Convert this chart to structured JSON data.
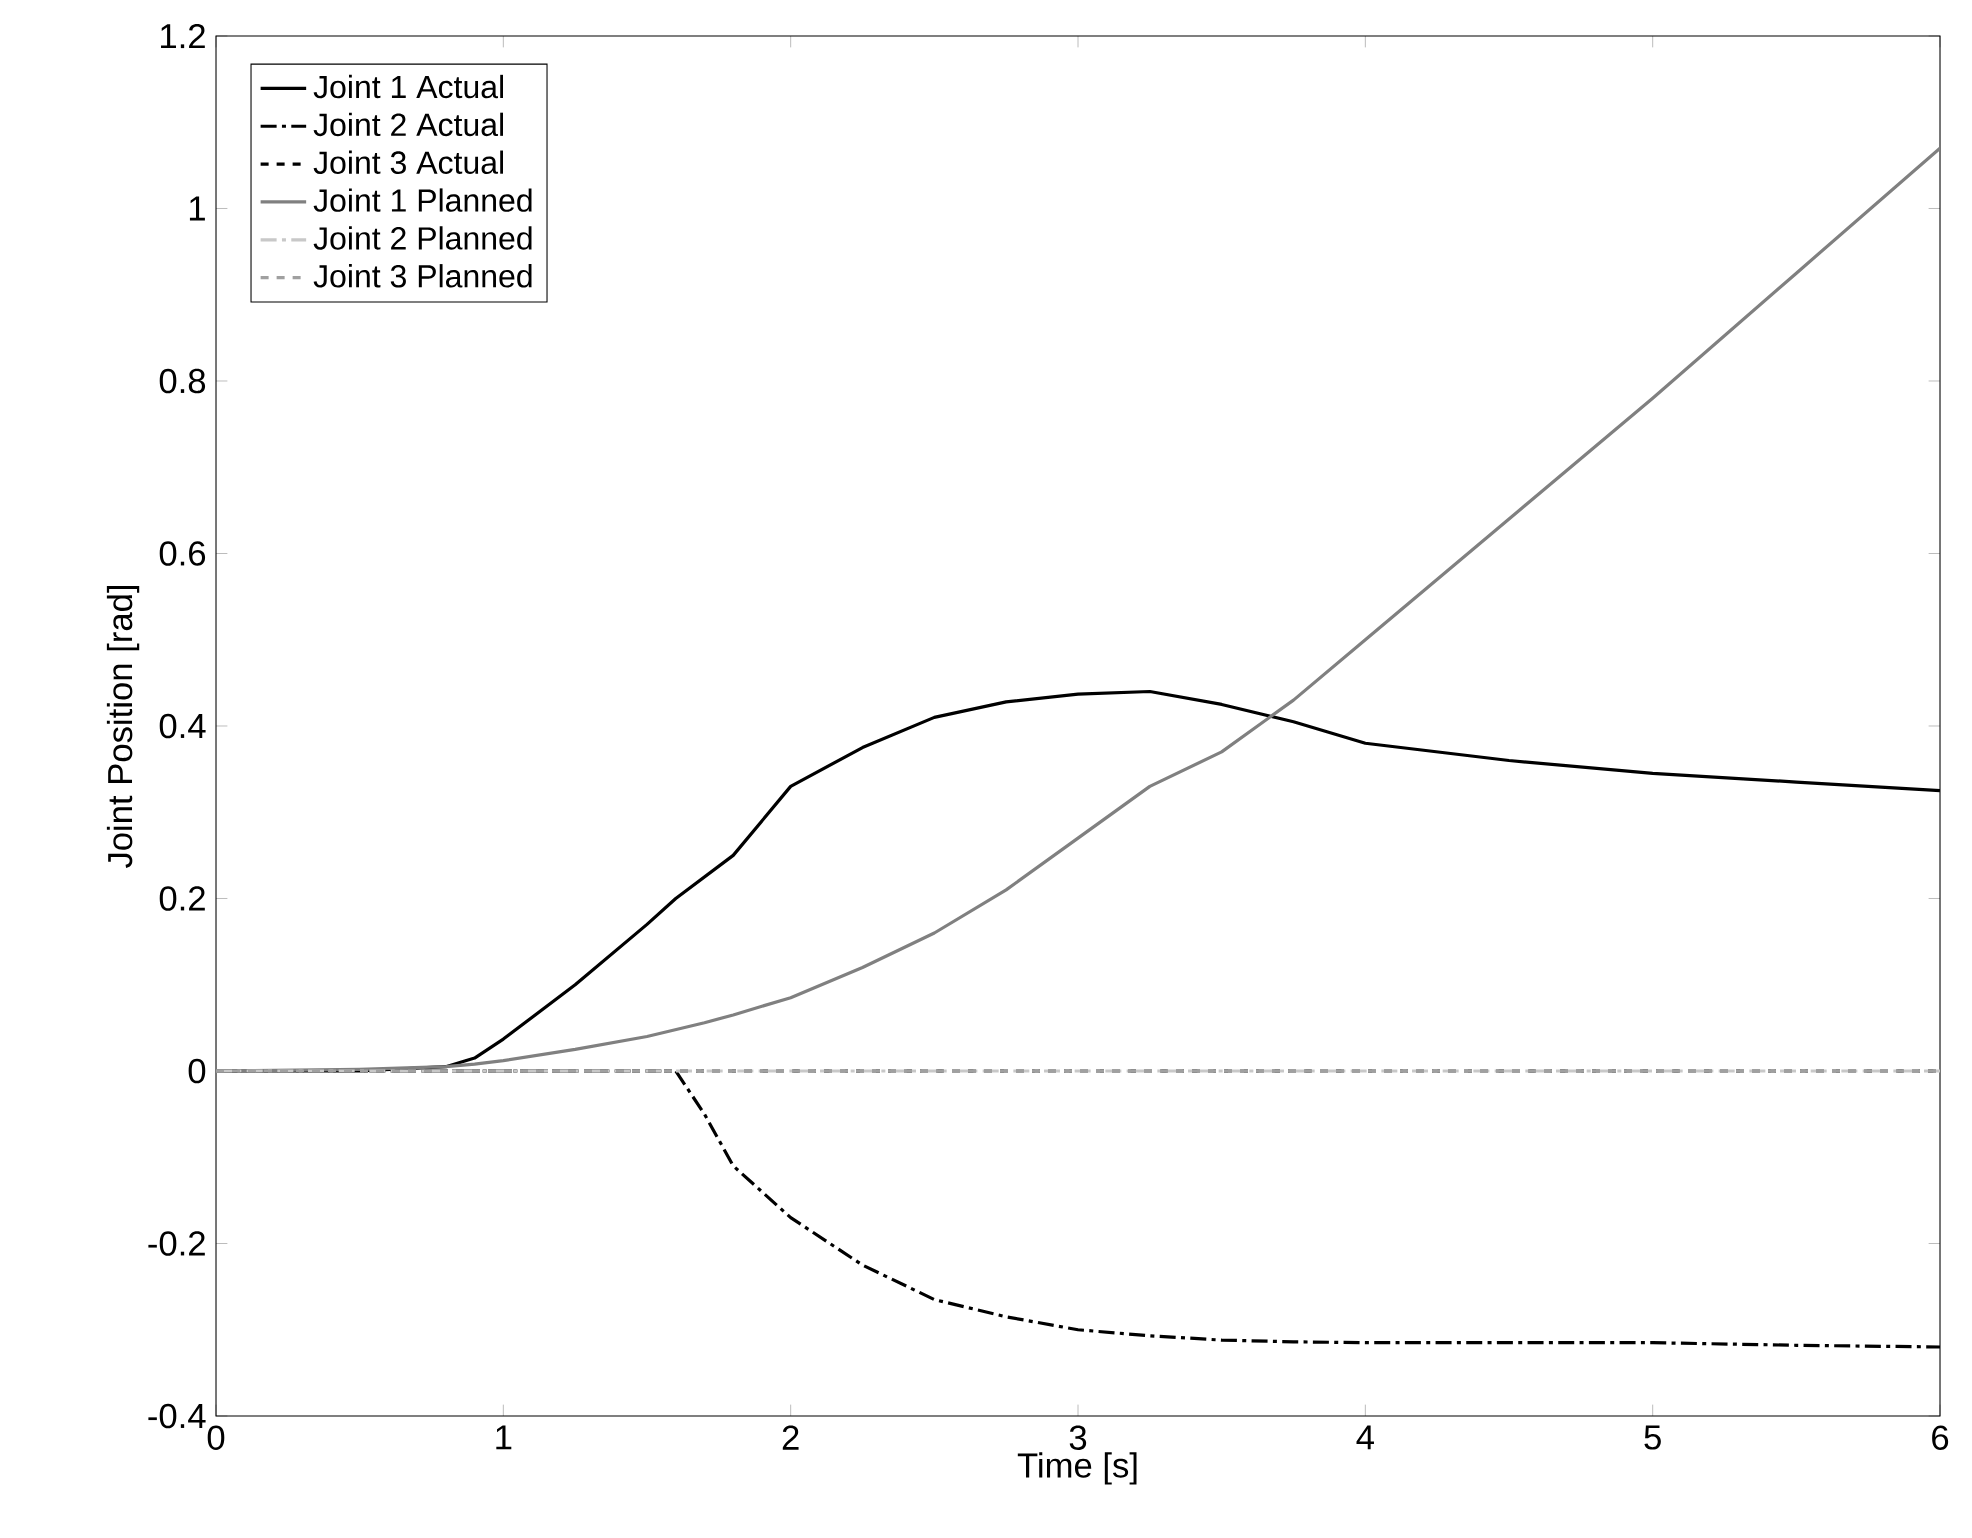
{
  "chart_data": {
    "type": "line",
    "xlabel": "Time [s]",
    "ylabel": "Joint Position [rad]",
    "xlim": [
      0,
      6
    ],
    "ylim": [
      -0.4,
      1.2
    ],
    "xticks": [
      0,
      1,
      2,
      3,
      4,
      5,
      6
    ],
    "yticks": [
      -0.4,
      -0.2,
      0,
      0.2,
      0.4,
      0.6,
      0.8,
      1,
      1.2
    ],
    "grid": false,
    "legend": "top left",
    "marker": "none",
    "x": [
      0,
      0.5,
      0.8,
      0.9,
      1,
      1.25,
      1.5,
      1.6,
      1.7,
      1.8,
      2,
      2.25,
      2.5,
      2.75,
      3,
      3.25,
      3.5,
      3.75,
      4,
      4.5,
      5,
      5.5,
      6
    ],
    "series": [
      {
        "name": "Joint 1 Actual",
        "color": "#000000",
        "line_style": "solid",
        "values": [
          0,
          0,
          0.005,
          0.015,
          0.037,
          0.1,
          0.17,
          0.2,
          0.225,
          0.25,
          0.33,
          0.375,
          0.41,
          0.428,
          0.437,
          0.44,
          0.425,
          0.405,
          0.38,
          0.36,
          0.345,
          0.335,
          0.325
        ]
      },
      {
        "name": "Joint 2 Actual",
        "color": "#000000",
        "line_style": "dashdot",
        "values": [
          0,
          0,
          0,
          0,
          0,
          0,
          0,
          0,
          -0.05,
          -0.11,
          -0.17,
          -0.225,
          -0.265,
          -0.285,
          -0.3,
          -0.307,
          -0.312,
          -0.314,
          -0.315,
          -0.315,
          -0.315,
          -0.318,
          -0.32
        ]
      },
      {
        "name": "Joint 3 Actual",
        "color": "#000000",
        "line_style": "dashed",
        "values": [
          0,
          0,
          0,
          0,
          0,
          0,
          0,
          0,
          0,
          0,
          0,
          0,
          0,
          0,
          0,
          0,
          0,
          0,
          0,
          0,
          0,
          0,
          0
        ]
      },
      {
        "name": "Joint 1 Planned",
        "color": "#808080",
        "line_style": "solid",
        "values": [
          0,
          0.002,
          0.005,
          0.008,
          0.012,
          0.025,
          0.04,
          0.048,
          0.056,
          0.065,
          0.085,
          0.12,
          0.16,
          0.21,
          0.27,
          0.33,
          0.37,
          0.43,
          0.5,
          0.64,
          0.78,
          0.925,
          1.07
        ]
      },
      {
        "name": "Joint 2 Planned",
        "color": "#c8c8c8",
        "line_style": "dashdot",
        "values": [
          0,
          0,
          0,
          0,
          0,
          0,
          0,
          0,
          0,
          0,
          0,
          0,
          0,
          0,
          0,
          0,
          0,
          0,
          0,
          0,
          0,
          0,
          0
        ]
      },
      {
        "name": "Joint 3 Planned",
        "color": "#a0a0a0",
        "line_style": "dashed",
        "values": [
          0,
          0,
          0,
          0,
          0,
          0,
          0,
          0,
          0,
          0,
          0,
          0,
          0,
          0,
          0,
          0,
          0,
          0,
          0,
          0,
          0,
          0,
          0
        ]
      }
    ]
  }
}
